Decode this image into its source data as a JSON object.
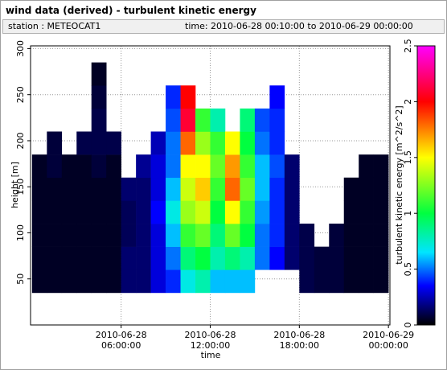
{
  "chart_data": {
    "type": "heatmap",
    "title": "wind data (derived) - turbulent kinetic energy",
    "station": "station : METEOCAT1",
    "time_range": "time: 2010-06-28 00:10:00 to 2010-06-29 00:00:00",
    "x_label": "time",
    "y_label": "height [m]",
    "colorbar_label": "turbulent kinetic energy [m^2/s^2]",
    "xlim": [
      -0.1,
      24.1
    ],
    "ylim": [
      0,
      303
    ],
    "clim": [
      0,
      2.5
    ],
    "xticks": [
      {
        "value": 6,
        "label": "2010-06-28 06:00:00"
      },
      {
        "value": 12,
        "label": "2010-06-28 12:00:00"
      },
      {
        "value": 18,
        "label": "2010-06-28 18:00:00"
      },
      {
        "value": 24,
        "label": "2010-06-29 00:00:00"
      }
    ],
    "yticks": [
      50,
      100,
      150,
      200,
      250,
      300
    ],
    "cticks": [
      0,
      0.5,
      1,
      1.5,
      2,
      2.5
    ],
    "grid": true,
    "colormap": [
      [
        0,
        "#000000"
      ],
      [
        0.35,
        "#0000ff"
      ],
      [
        0.65,
        "#00e5ff"
      ],
      [
        1.0,
        "#00ff40"
      ],
      [
        1.5,
        "#ffff00"
      ],
      [
        1.75,
        "#ff8000"
      ],
      [
        2.0,
        "#ff0000"
      ],
      [
        2.5,
        "#ff00ff"
      ]
    ],
    "xbins": [
      0,
      1,
      2,
      3,
      4,
      5,
      6,
      7,
      8,
      9,
      10,
      11,
      12,
      13,
      14,
      15,
      16,
      17,
      18,
      19,
      20,
      21,
      22,
      23,
      24
    ],
    "ybins": [
      35,
      60,
      85,
      110,
      135,
      160,
      185,
      210,
      235,
      260,
      285
    ],
    "z": [
      [
        0.05,
        0.05,
        0.05,
        0.05,
        0.05,
        0.05,
        null,
        null,
        null,
        null
      ],
      [
        0.05,
        0.05,
        0.05,
        0.05,
        0.05,
        0.08,
        0.08,
        null,
        null,
        null
      ],
      [
        0.05,
        0.05,
        0.05,
        0.05,
        0.05,
        0.05,
        null,
        null,
        null,
        null
      ],
      [
        0.05,
        0.05,
        0.05,
        0.05,
        0.05,
        0.05,
        0.1,
        null,
        null,
        null
      ],
      [
        0.05,
        0.05,
        0.05,
        0.05,
        0.05,
        0.08,
        0.1,
        0.1,
        0.08,
        0.05
      ],
      [
        0.05,
        0.05,
        0.05,
        0.05,
        0.05,
        0.05,
        0.1,
        null,
        null,
        null
      ],
      [
        0.15,
        0.15,
        0.12,
        0.12,
        0.15,
        null,
        null,
        null,
        null,
        null
      ],
      [
        0.15,
        0.15,
        0.15,
        0.15,
        0.15,
        0.2,
        null,
        null,
        null,
        null
      ],
      [
        0.3,
        0.3,
        0.3,
        0.35,
        0.3,
        0.3,
        0.25,
        null,
        null,
        null
      ],
      [
        0.4,
        0.5,
        0.6,
        0.7,
        0.6,
        0.5,
        0.5,
        0.45,
        0.4,
        null
      ],
      [
        0.7,
        0.9,
        1.1,
        1.3,
        1.4,
        1.5,
        1.8,
        2.1,
        2.0,
        null
      ],
      [
        0.8,
        1.0,
        1.2,
        1.4,
        1.6,
        1.5,
        1.3,
        1.1,
        null,
        null
      ],
      [
        0.6,
        0.8,
        0.9,
        1.0,
        1.1,
        1.2,
        1.1,
        0.8,
        null,
        null
      ],
      [
        0.6,
        0.9,
        1.2,
        1.5,
        1.8,
        1.7,
        1.5,
        null,
        null,
        null
      ],
      [
        0.6,
        0.8,
        1.0,
        1.1,
        1.2,
        1.1,
        1.0,
        0.9,
        null,
        null
      ],
      [
        null,
        0.5,
        0.5,
        0.55,
        0.6,
        0.6,
        0.5,
        0.45,
        null,
        null
      ],
      [
        null,
        0.35,
        0.4,
        0.4,
        0.4,
        0.45,
        0.4,
        0.4,
        0.35,
        null
      ],
      [
        null,
        0.15,
        0.15,
        0.15,
        0.15,
        0.15,
        null,
        null,
        null,
        null
      ],
      [
        0.1,
        0.1,
        0.1,
        null,
        null,
        null,
        null,
        null,
        null,
        null
      ],
      [
        0.08,
        0.08,
        null,
        null,
        null,
        null,
        null,
        null,
        null,
        null
      ],
      [
        0.08,
        0.08,
        0.08,
        null,
        null,
        null,
        null,
        null,
        null,
        null
      ],
      [
        0.05,
        0.05,
        0.05,
        0.05,
        0.05,
        null,
        null,
        null,
        null,
        null
      ],
      [
        0.05,
        0.05,
        0.05,
        0.05,
        0.05,
        0.05,
        null,
        null,
        null,
        null
      ],
      [
        0.05,
        0.05,
        0.05,
        0.05,
        0.05,
        0.05,
        null,
        null,
        null,
        null
      ]
    ]
  }
}
